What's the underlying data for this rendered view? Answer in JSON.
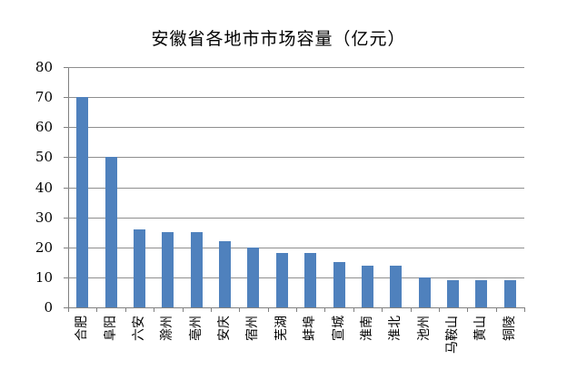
{
  "title": "安徽省各地市市场容量（亿元）",
  "chart_data": {
    "type": "bar",
    "title": "安徽省各地市市场容量（亿元）",
    "categories": [
      "合肥",
      "阜阳",
      "六安",
      "滁州",
      "亳州",
      "安庆",
      "宿州",
      "芜湖",
      "蚌埠",
      "宣城",
      "淮南",
      "淮北",
      "池州",
      "马鞍山",
      "黄山",
      "铜陵"
    ],
    "values": [
      70,
      50,
      26,
      25,
      25,
      22,
      20,
      18,
      18,
      15,
      14,
      14,
      10,
      9,
      9,
      9
    ],
    "xlabel": "",
    "ylabel": "",
    "ylim": [
      0,
      80
    ],
    "yticks": [
      0,
      10,
      20,
      30,
      40,
      50,
      60,
      70,
      80
    ],
    "grid": true,
    "legend": false,
    "colors": {
      "bar": "#4F81BD",
      "gridline": "#8E8E8E",
      "axis": "#808080",
      "text": "#000000",
      "background": "#FFFFFF"
    }
  }
}
